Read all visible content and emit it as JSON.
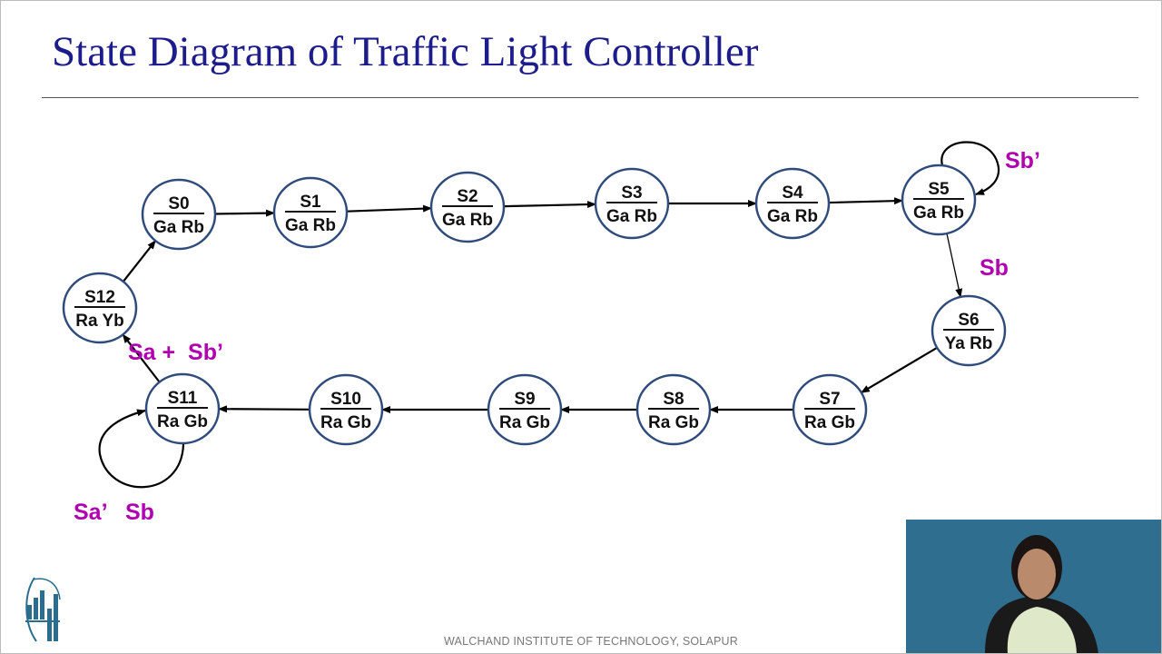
{
  "slide": {
    "title": "State Diagram of Traffic Light Controller",
    "footer": "WALCHAND INSTITUTE OF TECHNOLOGY, SOLAPUR",
    "logo_text": "WALCHAND INSTITUTE OF TECHNOLOGY"
  },
  "colors": {
    "title": "#1c1c8a",
    "condition": "#b000b0",
    "node_stroke": "#2f4b7c"
  },
  "diagram": {
    "states": [
      {
        "id": "S0",
        "output": "Ga Rb"
      },
      {
        "id": "S1",
        "output": "Ga Rb"
      },
      {
        "id": "S2",
        "output": "Ga Rb"
      },
      {
        "id": "S3",
        "output": "Ga Rb"
      },
      {
        "id": "S4",
        "output": "Ga Rb"
      },
      {
        "id": "S5",
        "output": "Ga Rb"
      },
      {
        "id": "S6",
        "output": "Ya Rb"
      },
      {
        "id": "S7",
        "output": "Ra Gb"
      },
      {
        "id": "S8",
        "output": "Ra Gb"
      },
      {
        "id": "S9",
        "output": "Ra Gb"
      },
      {
        "id": "S10",
        "output": "Ra Gb"
      },
      {
        "id": "S11",
        "output": "Ra Gb"
      },
      {
        "id": "S12",
        "output": "Ra Yb"
      }
    ],
    "transitions": [
      {
        "from": "S0",
        "to": "S1"
      },
      {
        "from": "S1",
        "to": "S2"
      },
      {
        "from": "S2",
        "to": "S3"
      },
      {
        "from": "S3",
        "to": "S4"
      },
      {
        "from": "S4",
        "to": "S5"
      },
      {
        "from": "S5",
        "to": "S5",
        "label": "Sb’"
      },
      {
        "from": "S5",
        "to": "S6",
        "label": "Sb"
      },
      {
        "from": "S6",
        "to": "S7"
      },
      {
        "from": "S7",
        "to": "S8"
      },
      {
        "from": "S8",
        "to": "S9"
      },
      {
        "from": "S9",
        "to": "S10"
      },
      {
        "from": "S10",
        "to": "S11"
      },
      {
        "from": "S11",
        "to": "S11",
        "label": "Sa’   Sb"
      },
      {
        "from": "S11",
        "to": "S12",
        "label": "Sa +  Sb’"
      },
      {
        "from": "S12",
        "to": "S0"
      }
    ]
  },
  "webcam": {
    "description_hidden": false
  }
}
